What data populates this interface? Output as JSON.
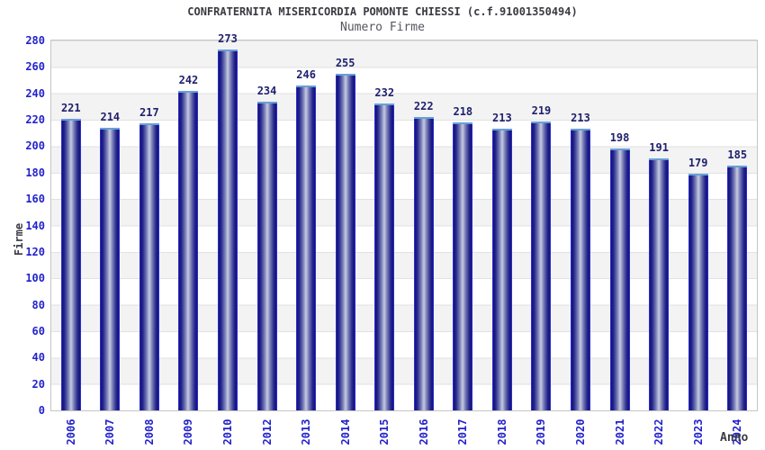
{
  "header": {
    "title": "CONFRATERNITA MISERICORDIA POMONTE CHIESSI (c.f.91001350494)",
    "subtitle": "Numero Firme"
  },
  "chart_data": {
    "type": "bar",
    "title": "Numero Firme",
    "xlabel": "Anno",
    "ylabel": "Firme",
    "categories": [
      "2006",
      "2007",
      "2008",
      "2009",
      "2010",
      "2012",
      "2013",
      "2014",
      "2015",
      "2016",
      "2017",
      "2018",
      "2019",
      "2020",
      "2021",
      "2022",
      "2023",
      "2024"
    ],
    "values": [
      221,
      214,
      217,
      242,
      273,
      234,
      246,
      255,
      232,
      222,
      218,
      213,
      219,
      213,
      198,
      191,
      179,
      185
    ],
    "ylim": [
      0,
      280
    ],
    "ytick_step": 20,
    "yticks": [
      0,
      20,
      40,
      60,
      80,
      100,
      120,
      140,
      160,
      180,
      200,
      220,
      240,
      260,
      280
    ],
    "grid": true,
    "legend_position": "none",
    "colors": {
      "axis_tick": "#2222cc",
      "value_label": "#20206e",
      "title_text": "#3a3a42",
      "subtitle_text": "#55555f",
      "bar_outline": "#2b2bd4",
      "bar_dark": "#16167c",
      "bar_mid": "#2c2c90",
      "bar_mid_light": "#7a80b8",
      "bar_light": "#c7cbe0",
      "bar_cap": "#66a0d8",
      "band_gray": "#f3f3f3",
      "band_white": "#ffffff",
      "gridline": "#e2e2e2",
      "plot_border": "#c6c6c6"
    }
  }
}
